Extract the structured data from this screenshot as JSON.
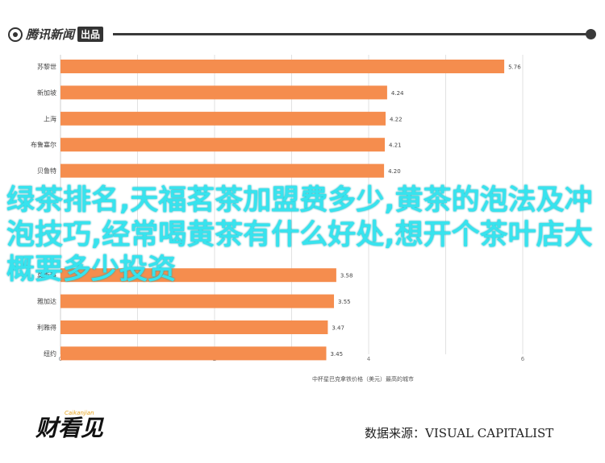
{
  "header": {
    "logo_text": "腾讯新闻",
    "logo_badge": "出品"
  },
  "overlay_title": "绿茶排名,天福茗茶加盟费多少,黄茶的泡法及冲泡技巧,经常喝黄茶有什么好处,想开个茶叶店大概要多少投资",
  "footer": {
    "brand": "财看见",
    "brand_sub": "Caikanjian",
    "source": "数据来源：VISUAL CAPITALIST"
  },
  "colors": {
    "bar": "#f58d4e",
    "grid": "#e2e2e2",
    "overlay_text": "#37e3ee"
  },
  "chart_data": {
    "type": "bar",
    "orientation": "horizontal",
    "categories": [
      "苏黎世",
      "新加坡",
      "上海",
      "布鲁塞尔",
      "贝鲁特",
      "",
      "",
      "",
      "莫斯科",
      "雅加达",
      "利雅得",
      "纽约"
    ],
    "values": [
      5.76,
      4.24,
      4.22,
      4.21,
      4.2,
      null,
      null,
      null,
      3.58,
      3.55,
      3.47,
      3.45
    ],
    "value_labels": [
      "5.76",
      "4.24",
      "4.22",
      "4.21",
      "4.20",
      "",
      "",
      "",
      "3.58",
      "3.55",
      "3.47",
      "3.45"
    ],
    "xlim": [
      0,
      6.5
    ],
    "xticks": [
      0,
      2,
      4,
      6
    ],
    "xlabel": "中杯星巴克拿铁价格（美元）最高的城市",
    "grid": true,
    "legend": "none"
  }
}
